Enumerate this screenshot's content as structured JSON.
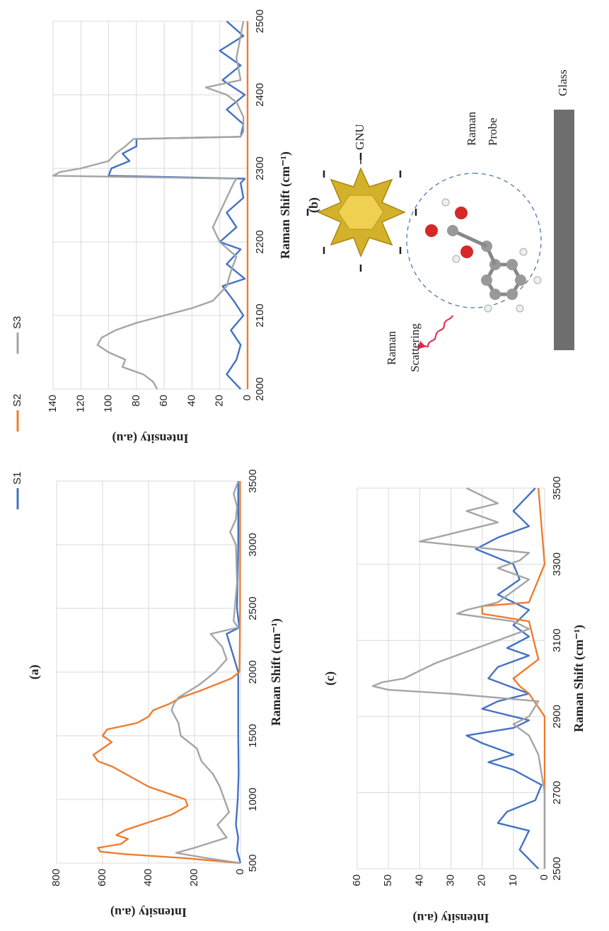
{
  "chart_data": [
    {
      "type": "line",
      "title": "(a)",
      "x_label": "Raman Shift (cm⁻¹)",
      "y_label": "Intensity (a.u)",
      "xlim": [
        500,
        3500
      ],
      "ylim": [
        0,
        800
      ],
      "xticks": [
        500,
        1000,
        1500,
        2000,
        2500,
        3000,
        3500
      ],
      "yticks": [
        0,
        200,
        400,
        600,
        800
      ],
      "grid": true,
      "series": [
        {
          "name": "S1",
          "color": "#4472c4",
          "x": [
            500,
            600,
            700,
            800,
            1000,
            1200,
            1500,
            2000,
            2300,
            2350,
            2500,
            3000,
            3500
          ],
          "values": [
            0,
            15,
            10,
            20,
            12,
            8,
            10,
            10,
            60,
            5,
            15,
            10,
            10
          ]
        },
        {
          "name": "S2",
          "color": "#ed7d31",
          "x": [
            500,
            540,
            570,
            590,
            620,
            650,
            690,
            720,
            760,
            820,
            880,
            950,
            1000,
            1050,
            1100,
            1150,
            1200,
            1260,
            1300,
            1350,
            1400,
            1450,
            1500,
            1550,
            1600,
            1650,
            1700,
            1750,
            1800,
            1850,
            1900,
            1950,
            2000,
            2200,
            2500,
            3000,
            3500
          ],
          "values": [
            0,
            250,
            500,
            610,
            620,
            520,
            490,
            540,
            500,
            400,
            300,
            230,
            240,
            320,
            400,
            450,
            500,
            560,
            620,
            640,
            600,
            560,
            600,
            580,
            450,
            400,
            380,
            310,
            260,
            180,
            110,
            40,
            5,
            3,
            2,
            2,
            2
          ]
        },
        {
          "name": "S3",
          "color": "#a5a5a5",
          "x": [
            500,
            540,
            580,
            620,
            700,
            800,
            900,
            1000,
            1100,
            1200,
            1300,
            1400,
            1500,
            1600,
            1700,
            1750,
            1800,
            1900,
            2000,
            2100,
            2200,
            2300,
            2350,
            2400,
            2500,
            2700,
            3000,
            3100,
            3200,
            3300,
            3400,
            3500
          ],
          "values": [
            0,
            150,
            280,
            200,
            60,
            100,
            50,
            70,
            90,
            120,
            170,
            190,
            260,
            270,
            300,
            290,
            270,
            180,
            110,
            60,
            80,
            130,
            10,
            30,
            25,
            15,
            20,
            45,
            20,
            15,
            30,
            10
          ]
        }
      ]
    },
    {
      "type": "line",
      "title": "(b)",
      "x_label": "Raman Shift (cm⁻¹)",
      "y_label": "Intensity (a.u)",
      "xlim": [
        2000,
        2500
      ],
      "ylim": [
        0,
        140
      ],
      "xticks": [
        2000,
        2100,
        2200,
        2300,
        2400,
        2500
      ],
      "yticks": [
        0,
        20,
        40,
        60,
        80,
        100,
        120,
        140
      ],
      "grid": true,
      "series": [
        {
          "color": "#4472c4",
          "x": [
            2000,
            2020,
            2040,
            2060,
            2080,
            2100,
            2120,
            2140,
            2150,
            2170,
            2190,
            2200,
            2220,
            2240,
            2260,
            2280,
            2286,
            2290,
            2300,
            2310,
            2320,
            2330,
            2340,
            2343,
            2360,
            2380,
            2400,
            2420,
            2440,
            2460,
            2480,
            2500
          ],
          "values": [
            5,
            15,
            8,
            5,
            12,
            3,
            10,
            18,
            2,
            15,
            5,
            20,
            8,
            15,
            3,
            5,
            2,
            100,
            98,
            85,
            90,
            80,
            80,
            5,
            3,
            15,
            2,
            18,
            5,
            20,
            3,
            15
          ]
        },
        {
          "color": "#ed7d31",
          "x": [
            2000,
            2500
          ],
          "values": [
            0,
            0
          ]
        },
        {
          "color": "#a5a5a5",
          "x": [
            2000,
            2010,
            2020,
            2030,
            2040,
            2050,
            2060,
            2070,
            2080,
            2090,
            2100,
            2110,
            2120,
            2140,
            2160,
            2180,
            2200,
            2220,
            2240,
            2260,
            2280,
            2286,
            2290,
            2295,
            2300,
            2310,
            2320,
            2330,
            2335,
            2340,
            2343,
            2350,
            2370,
            2390,
            2400,
            2410,
            2420,
            2450,
            2500
          ],
          "values": [
            65,
            68,
            75,
            90,
            88,
            100,
            108,
            105,
            95,
            80,
            60,
            40,
            25,
            15,
            12,
            8,
            20,
            25,
            20,
            15,
            10,
            8,
            140,
            135,
            120,
            100,
            95,
            88,
            85,
            82,
            5,
            3,
            3,
            8,
            15,
            30,
            5,
            8,
            3
          ]
        }
      ]
    },
    {
      "type": "line",
      "title": "(c)",
      "x_label": "Raman Shift (cm⁻¹)",
      "y_label": "Intensity (a.u)",
      "xlim": [
        2500,
        3500
      ],
      "ylim": [
        0,
        60
      ],
      "xticks": [
        2500,
        2700,
        2900,
        3100,
        3300,
        3500
      ],
      "yticks": [
        0,
        10,
        20,
        30,
        40,
        50,
        60
      ],
      "grid": true,
      "series": [
        {
          "color": "#4472c4",
          "x": [
            2500,
            2550,
            2600,
            2620,
            2650,
            2680,
            2720,
            2760,
            2780,
            2800,
            2830,
            2850,
            2870,
            2890,
            2920,
            2940,
            2960,
            3000,
            3030,
            3060,
            3080,
            3110,
            3140,
            3180,
            3220,
            3260,
            3300,
            3340,
            3370,
            3400,
            3440,
            3500
          ],
          "values": [
            2,
            8,
            5,
            15,
            12,
            3,
            1,
            10,
            18,
            10,
            20,
            25,
            10,
            5,
            20,
            15,
            5,
            18,
            15,
            5,
            12,
            5,
            10,
            5,
            15,
            8,
            10,
            22,
            15,
            5,
            10,
            3
          ]
        },
        {
          "color": "#ed7d31",
          "x": [
            2500,
            2900,
            2960,
            2980,
            3000,
            3050,
            3150,
            3170,
            3190,
            3200,
            3300,
            3500
          ],
          "values": [
            0,
            0,
            5,
            8,
            10,
            2,
            5,
            20,
            20,
            5,
            0,
            2
          ]
        },
        {
          "color": "#a5a5a5",
          "x": [
            2500,
            2600,
            2700,
            2800,
            2850,
            2880,
            2900,
            2940,
            2960,
            2970,
            2980,
            2990,
            3000,
            3020,
            3040,
            3070,
            3100,
            3130,
            3150,
            3170,
            3180,
            3200,
            3230,
            3260,
            3290,
            3310,
            3330,
            3360,
            3380,
            3410,
            3440,
            3460,
            3500
          ],
          "values": [
            0,
            0,
            0,
            2,
            5,
            10,
            5,
            2,
            30,
            50,
            55,
            52,
            45,
            40,
            35,
            25,
            15,
            5,
            10,
            28,
            25,
            15,
            10,
            5,
            15,
            8,
            5,
            40,
            30,
            15,
            25,
            15,
            25
          ]
        }
      ]
    }
  ],
  "diagram": {
    "particle": "GNU",
    "probe": [
      "Raman",
      "Probe"
    ],
    "scattering": [
      "Raman",
      "Scattering"
    ],
    "substrate": "Glass"
  }
}
